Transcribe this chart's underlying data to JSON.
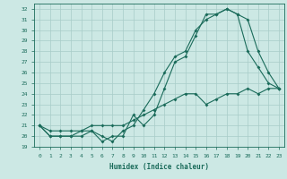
{
  "title": "",
  "xlabel": "Humidex (Indice chaleur)",
  "bg_color": "#cce8e4",
  "line_color": "#1a6b5a",
  "grid_color": "#a8ccc8",
  "xlim": [
    -0.5,
    23.5
  ],
  "ylim": [
    19,
    32.5
  ],
  "yticks": [
    19,
    20,
    21,
    22,
    23,
    24,
    25,
    26,
    27,
    28,
    29,
    30,
    31,
    32
  ],
  "xticks": [
    0,
    1,
    2,
    3,
    4,
    5,
    6,
    7,
    8,
    9,
    10,
    11,
    12,
    13,
    14,
    15,
    16,
    17,
    18,
    19,
    20,
    21,
    22,
    23
  ],
  "line1_x": [
    0,
    1,
    2,
    3,
    4,
    5,
    6,
    7,
    8,
    9,
    10,
    11,
    12,
    13,
    14,
    15,
    16,
    17,
    18,
    19,
    20,
    21,
    22,
    23
  ],
  "line1_y": [
    21,
    20,
    20,
    20,
    20,
    20.5,
    19.5,
    20,
    20,
    22,
    21,
    22,
    24.5,
    27,
    27.5,
    29.5,
    31.5,
    31.5,
    32,
    31.5,
    31,
    28,
    26,
    24.5
  ],
  "line2_x": [
    0,
    1,
    2,
    3,
    4,
    5,
    6,
    7,
    8,
    9,
    10,
    11,
    12,
    13,
    14,
    15,
    16,
    17,
    18,
    19,
    20,
    21,
    22,
    23
  ],
  "line2_y": [
    21,
    20,
    20,
    20,
    20.5,
    20.5,
    20,
    19.5,
    20.5,
    21,
    22.5,
    24,
    26,
    27.5,
    28,
    30,
    31,
    31.5,
    32,
    31.5,
    28,
    26.5,
    25,
    24.5
  ],
  "line3_x": [
    0,
    1,
    2,
    3,
    4,
    5,
    6,
    7,
    8,
    9,
    10,
    11,
    12,
    13,
    14,
    15,
    16,
    17,
    18,
    19,
    20,
    21,
    22,
    23
  ],
  "line3_y": [
    21,
    20.5,
    20.5,
    20.5,
    20.5,
    21,
    21,
    21,
    21,
    21.5,
    22,
    22.5,
    23,
    23.5,
    24,
    24,
    23,
    23.5,
    24,
    24,
    24.5,
    24,
    24.5,
    24.5
  ]
}
